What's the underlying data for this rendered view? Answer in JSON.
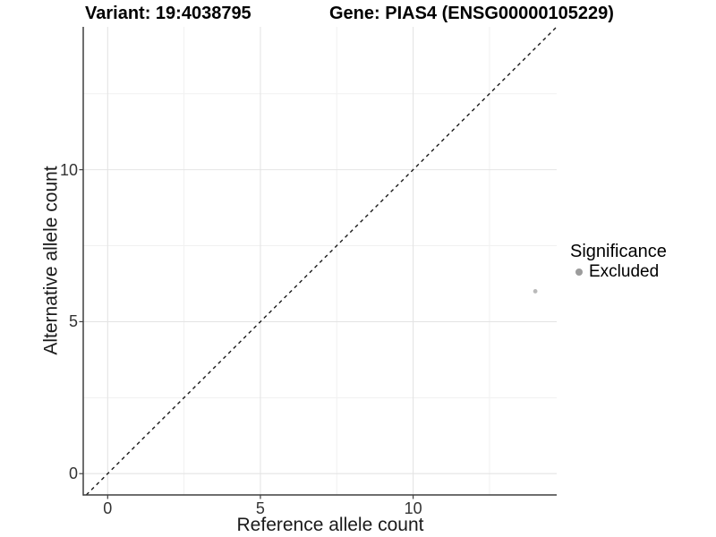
{
  "header": {
    "variant_title": "Variant: 19:4038795",
    "gene_title": "Gene: PIAS4 (ENSG00000105229)"
  },
  "axes": {
    "x_label": "Reference allele count",
    "y_label": "Alternative allele count"
  },
  "legend": {
    "title": "Significance",
    "items": [
      {
        "label": "Excluded",
        "color": "#9c9c9c"
      }
    ]
  },
  "colors": {
    "background": "#ffffff",
    "axis_line": "#3f3f3f",
    "tick_mark": "#404040",
    "grid_major": "#e4e4e4",
    "grid_minor": "#f1f1f1",
    "tick_text": "#333333",
    "title_text": "#000000",
    "point": "#bababa",
    "legend_point": "#9c9c9c",
    "dashed_line": "#1a1a1a"
  },
  "chart_data": {
    "type": "scatter",
    "title": "Variant: 19:4038795 | Gene: PIAS4 (ENSG00000105229)",
    "xlabel": "Reference allele count",
    "ylabel": "Alternative allele count",
    "xlim": [
      -0.8,
      14.7
    ],
    "ylim": [
      -0.7,
      14.7
    ],
    "x_major_ticks": [
      0,
      5,
      10
    ],
    "y_major_ticks": [
      0,
      5,
      10
    ],
    "x_minor_ticks": [
      2.5,
      7.5,
      12.5
    ],
    "y_minor_ticks": [
      2.5,
      7.5,
      12.5
    ],
    "grid": true,
    "legend_position": "right",
    "series": [
      {
        "name": "Excluded",
        "color": "#bababa",
        "point_radius": 2.4,
        "points": [
          {
            "x": 14,
            "y": 6
          }
        ]
      }
    ],
    "reference_line": {
      "type": "identity",
      "equation": "y = x",
      "style": "dashed",
      "color": "#1a1a1a"
    }
  }
}
